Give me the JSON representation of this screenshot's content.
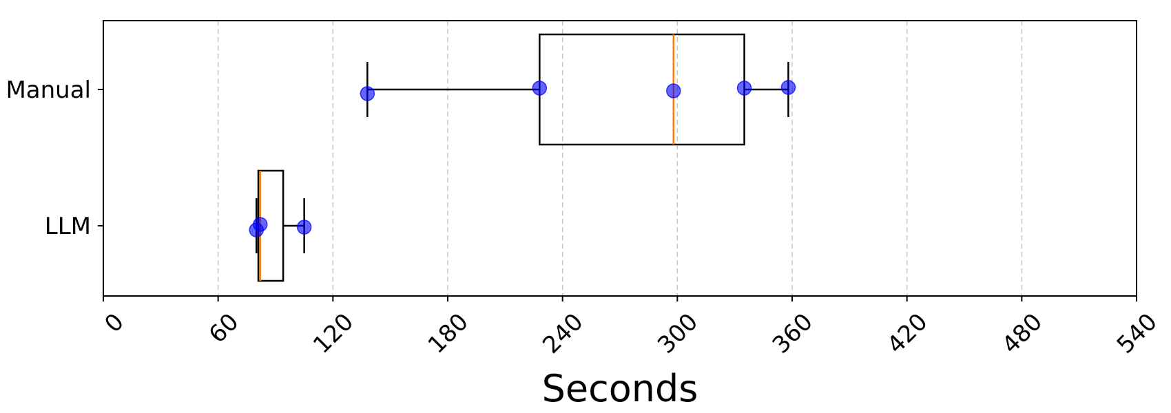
{
  "chart_data": {
    "type": "boxplot",
    "orientation": "horizontal",
    "title": "",
    "xlabel": "Seconds",
    "ylabel": "",
    "xlim": [
      0,
      540
    ],
    "x_ticks": [
      0,
      60,
      120,
      180,
      240,
      300,
      360,
      420,
      480,
      540
    ],
    "x_tick_labels": [
      "0",
      "60",
      "120",
      "180",
      "240",
      "300",
      "360",
      "420",
      "480",
      "540"
    ],
    "categories": [
      "Manual",
      "LLM"
    ],
    "grid": {
      "x": true,
      "y": false,
      "style": "dashed"
    },
    "colors": {
      "box": "#000000",
      "median": "#ff7f0e",
      "points": "#0000ff",
      "grid": "#c8c8c8"
    },
    "boxes": [
      {
        "label": "Manual",
        "whisker_low": 138,
        "q1": 228,
        "median": 298,
        "q3": 335,
        "whisker_high": 358,
        "points": [
          138,
          228,
          298,
          335,
          358
        ]
      },
      {
        "label": "LLM",
        "whisker_low": 80,
        "q1": 81,
        "median": 82,
        "q3": 94,
        "whisker_high": 105,
        "points": [
          80,
          82,
          105
        ]
      }
    ]
  }
}
